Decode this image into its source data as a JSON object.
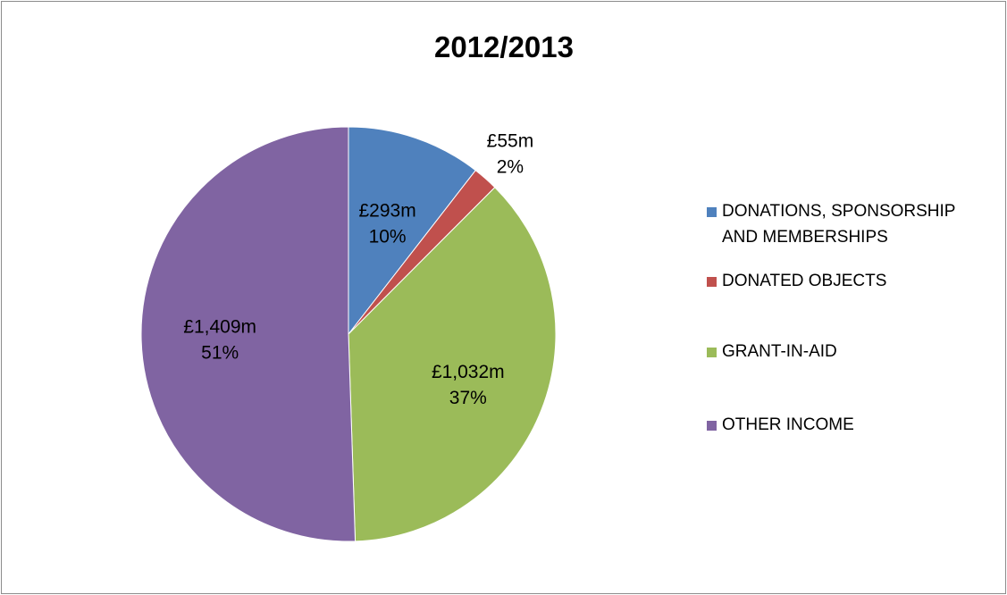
{
  "chart_data": {
    "type": "pie",
    "title": "2012/2013",
    "legend_position": "right",
    "categories": [
      "DONATIONS, SPONSORSHIP AND MEMBERSHIPS",
      "DONATED OBJECTS",
      "GRANT-IN-AID",
      "OTHER INCOME"
    ],
    "legend_lines": [
      [
        "DONATIONS, SPONSORSHIP",
        "AND MEMBERSHIPS"
      ],
      [
        "DONATED OBJECTS"
      ],
      [
        "GRANT-IN-AID"
      ],
      [
        "OTHER INCOME"
      ]
    ],
    "values": [
      293,
      55,
      1032,
      1409
    ],
    "unit": "£m",
    "value_labels": [
      "£293m",
      "£55m",
      "£1,032m",
      "£1,409m"
    ],
    "percent_labels": [
      "10%",
      "2%",
      "37%",
      "51%"
    ],
    "colors": [
      "#4f81bd",
      "#c0504d",
      "#9bbb59",
      "#8064a2"
    ]
  }
}
